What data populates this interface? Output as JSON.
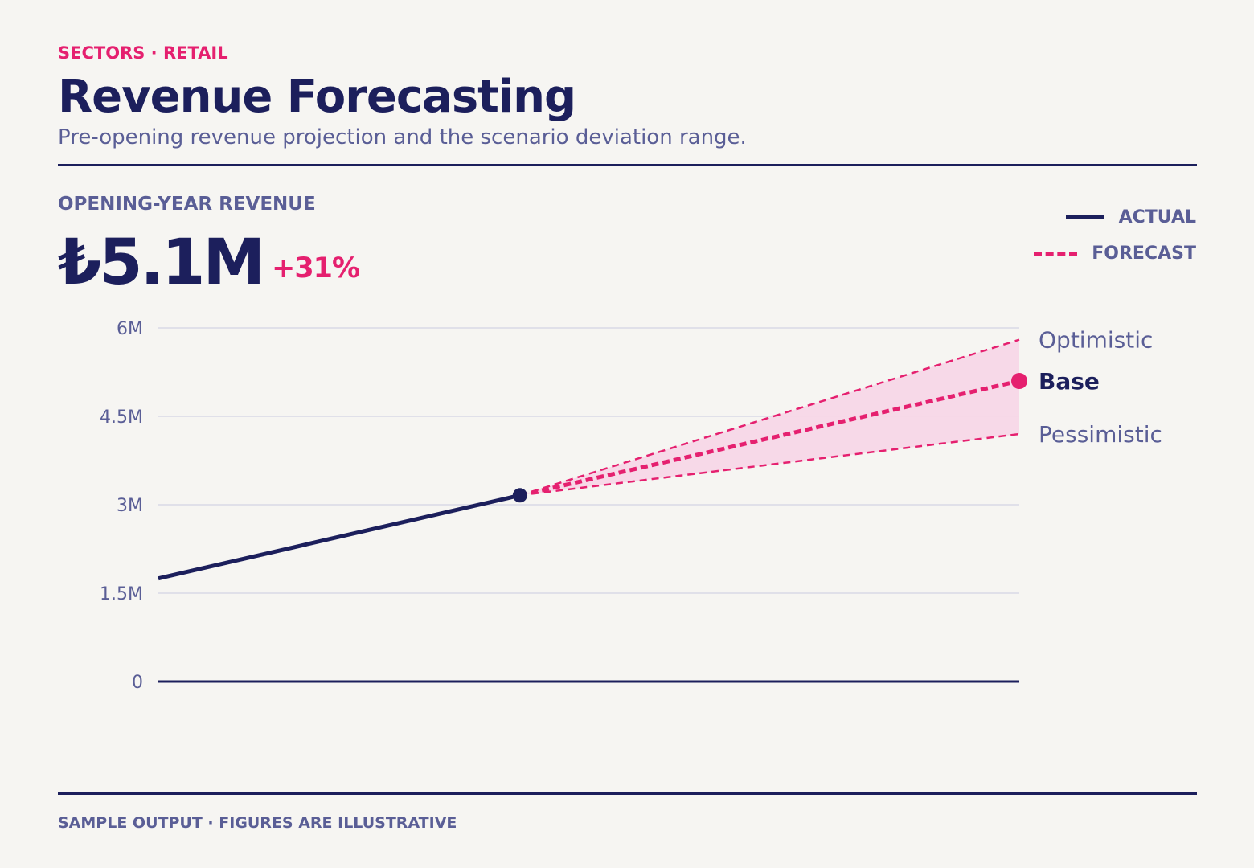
{
  "header": {
    "eyebrow": "SECTORS · RETAIL",
    "title": "Revenue Forecasting",
    "subtitle": "Pre-opening revenue projection and the scenario deviation range."
  },
  "kpi": {
    "label": "OPENING-YEAR REVENUE",
    "value": "₺5.1M",
    "delta": "+31%"
  },
  "legend": {
    "actual": "ACTUAL",
    "forecast": "FORECAST"
  },
  "footer": "SAMPLE OUTPUT · FIGURES ARE ILLUSTRATIVE",
  "colors": {
    "navy": "#1c1f5c",
    "accent": "#e5206f",
    "muted": "#5a5e96",
    "band": "#f7d7e7",
    "grid": "#d9dae6"
  },
  "chart_data": {
    "type": "line",
    "ylim": [
      0,
      6000000
    ],
    "xlim": [
      0,
      1
    ],
    "yticks": [
      {
        "value": 0,
        "label": "0"
      },
      {
        "value": 1500000,
        "label": "1.5M"
      },
      {
        "value": 3000000,
        "label": "3M"
      },
      {
        "value": 4500000,
        "label": "4.5M"
      },
      {
        "value": 6000000,
        "label": "6M"
      }
    ],
    "actual": {
      "x": [
        0,
        0.42
      ],
      "y": [
        1750000,
        3160000
      ]
    },
    "scenarios": [
      {
        "name": "Optimistic",
        "x": [
          0.42,
          1
        ],
        "y": [
          3160000,
          5800000
        ],
        "emphasis": false
      },
      {
        "name": "Base",
        "x": [
          0.42,
          1
        ],
        "y": [
          3160000,
          5100000
        ],
        "emphasis": true
      },
      {
        "name": "Pessimistic",
        "x": [
          0.42,
          1
        ],
        "y": [
          3160000,
          4200000
        ],
        "emphasis": false
      }
    ],
    "grid": true
  }
}
